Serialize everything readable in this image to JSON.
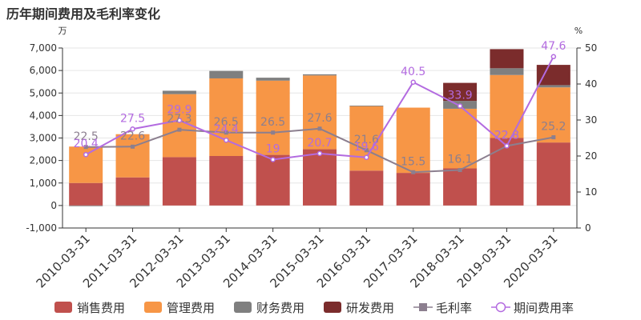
{
  "chart_data": {
    "type": "bar",
    "title": "历年期间费用及毛利率变化",
    "y_left_unit": "万",
    "y_right_unit": "%",
    "ylim_left": [
      -1000,
      7000
    ],
    "yticks_left": [
      "-1,000",
      "0",
      "1,000",
      "2,000",
      "3,000",
      "4,000",
      "5,000",
      "6,000",
      "7,000"
    ],
    "ylim_right": [
      0,
      50
    ],
    "yticks_right": [
      "0",
      "10",
      "20",
      "30",
      "40",
      "50"
    ],
    "categories": [
      "2010-03-31",
      "2011-03-31",
      "2012-03-31",
      "2013-03-31",
      "2014-03-31",
      "2015-03-31",
      "2016-03-31",
      "2017-03-31",
      "2018-03-31",
      "2019-03-31",
      "2020-03-31"
    ],
    "grid": true,
    "legend_position": "bottom",
    "series": [
      {
        "name": "销售费用",
        "kind": "bar",
        "color": "#c0504d",
        "values": [
          1000,
          1250,
          2150,
          2200,
          2250,
          2500,
          1550,
          1450,
          1650,
          3000,
          2800
        ]
      },
      {
        "name": "管理费用",
        "kind": "bar",
        "color": "#f79646",
        "values": [
          1620,
          1920,
          2800,
          3450,
          3300,
          3280,
          2870,
          2900,
          2650,
          2800,
          2450
        ]
      },
      {
        "name": "财务费用",
        "kind": "bar",
        "color": "#7f7f7f",
        "values": [
          -30,
          -20,
          150,
          330,
          130,
          50,
          20,
          0,
          350,
          300,
          100
        ]
      },
      {
        "name": "研发费用",
        "kind": "bar",
        "color": "#7b2c2c",
        "values": [
          0,
          0,
          0,
          0,
          0,
          0,
          0,
          0,
          800,
          850,
          900
        ]
      },
      {
        "name": "毛利率",
        "kind": "line",
        "color": "#8c7f8f",
        "axis": "right",
        "values": [
          22.5,
          22.6,
          27.3,
          26.5,
          26.5,
          27.6,
          21.6,
          15.5,
          16.1,
          22.8,
          25.2
        ],
        "labels": [
          "22.5",
          "22.6",
          "27.3",
          "26.5",
          "26.5",
          "27.6",
          "21.6",
          "15.5",
          "16.1",
          "22.8",
          "25.2"
        ]
      },
      {
        "name": "期间费用率",
        "kind": "line",
        "color": "#b36be0",
        "axis": "right",
        "values": [
          20.4,
          27.5,
          29.9,
          24.4,
          19,
          20.7,
          19.6,
          40.5,
          33.9,
          22.8,
          47.6
        ],
        "labels": [
          "20.4",
          "27.5",
          "29.9",
          "24.4",
          "19",
          "20.7",
          "19.6",
          "40.5",
          "33.9",
          "22.8",
          "47.6"
        ]
      }
    ]
  }
}
